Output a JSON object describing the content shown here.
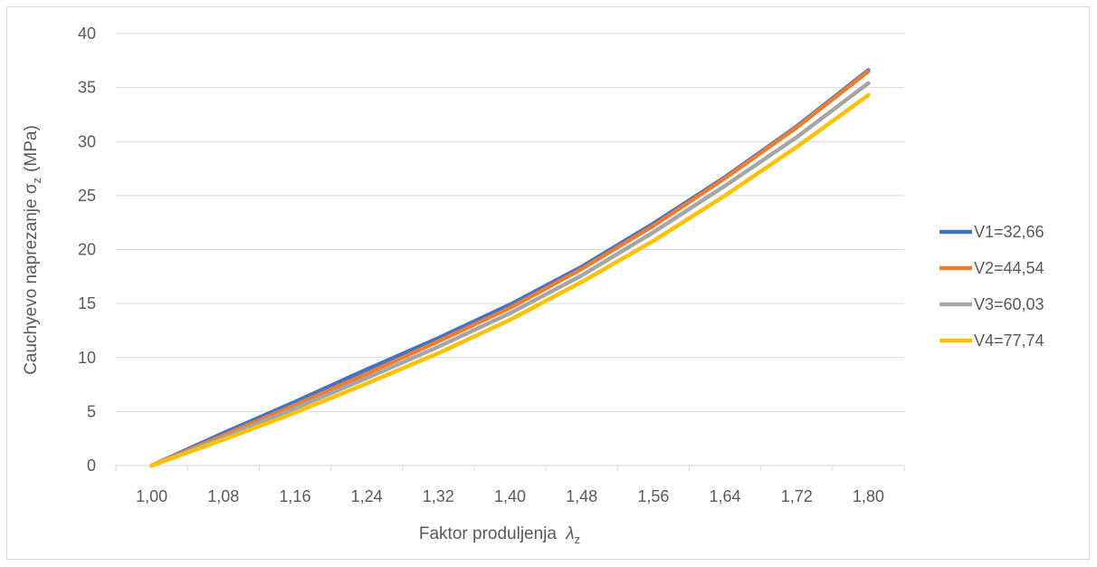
{
  "chart_data": {
    "type": "line",
    "title": "",
    "xlabel": "Faktor produljenja",
    "xlabel_symbol": "λ",
    "xlabel_sub": "z",
    "ylabel": "Cauchyevo naprezanje σ",
    "ylabel_sub": "z",
    "ylabel_unit": "(MPa)",
    "ylim": [
      0,
      40
    ],
    "yticks": [
      "0",
      "5",
      "10",
      "15",
      "20",
      "25",
      "30",
      "35",
      "40"
    ],
    "categories": [
      "1,00",
      "1,08",
      "1,16",
      "1,24",
      "1,32",
      "1,40",
      "1,48",
      "1,56",
      "1,64",
      "1,72",
      "1,80"
    ],
    "x": [
      1.0,
      1.08,
      1.16,
      1.24,
      1.32,
      1.4,
      1.48,
      1.56,
      1.64,
      1.72,
      1.8
    ],
    "grid": "horizontal",
    "legend_position": "right",
    "series": [
      {
        "name": "V1=32,66",
        "color": "#4472c4",
        "values": [
          0,
          3.0,
          5.9,
          8.9,
          11.8,
          14.9,
          18.4,
          22.4,
          26.7,
          31.4,
          36.6
        ]
      },
      {
        "name": "V2=44,54",
        "color": "#ed7d31",
        "values": [
          0,
          2.8,
          5.6,
          8.5,
          11.5,
          14.6,
          18.2,
          22.2,
          26.6,
          31.3,
          36.5
        ]
      },
      {
        "name": "V3=60,03",
        "color": "#a5a5a5",
        "values": [
          0,
          2.6,
          5.3,
          8.1,
          11.0,
          14.1,
          17.6,
          21.6,
          25.9,
          30.4,
          35.4
        ]
      },
      {
        "name": "V4=77,74",
        "color": "#ffc000",
        "values": [
          0,
          2.4,
          4.9,
          7.6,
          10.4,
          13.5,
          17.0,
          20.8,
          25.0,
          29.5,
          34.3
        ]
      }
    ]
  }
}
